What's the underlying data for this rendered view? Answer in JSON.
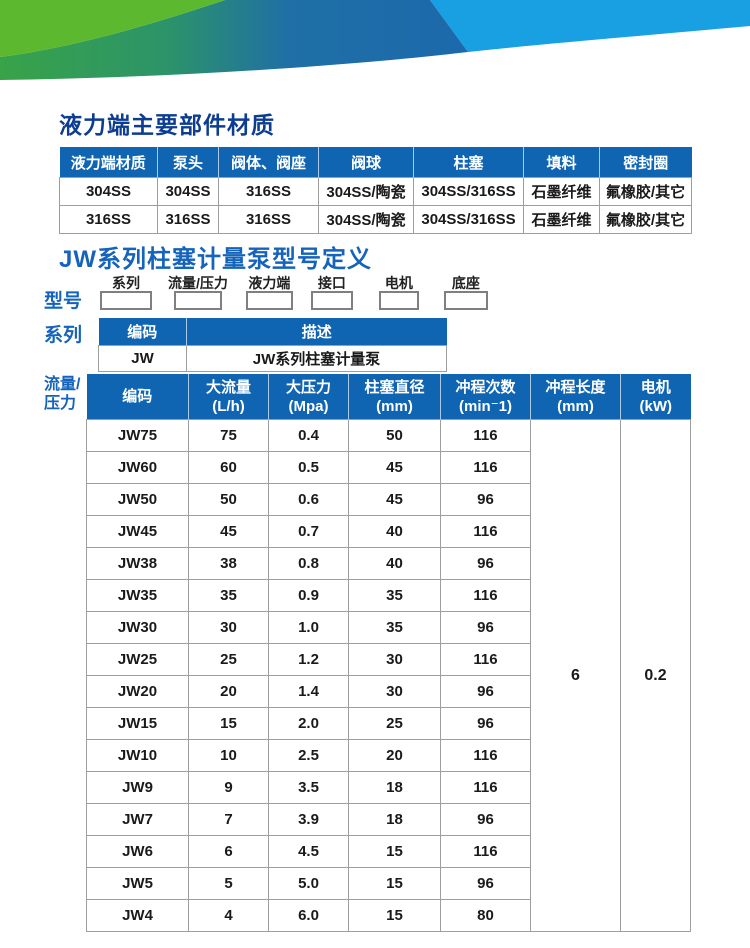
{
  "colors": {
    "header-blue": "#1065b2",
    "title-dark-blue": "#0d3d91",
    "title-bright-blue": "#1563bb",
    "label-blue": "#1563bb",
    "table-border": "#9e9e9e",
    "text-dark": "#1a1a1a",
    "wave-bright-green": "#5cb92f",
    "wave-dark-green": "#319e4d",
    "wave-steel-blue": "#1e6cab",
    "wave-light-blue": "#18a0e2"
  },
  "materials": {
    "title": "液力端主要部件材质",
    "headers": [
      "液力端材质",
      "泵头",
      "阀体、阀座",
      "阀球",
      "柱塞",
      "填料",
      "密封圈"
    ],
    "rows": [
      [
        "304SS",
        "304SS",
        "316SS",
        "304SS/陶瓷",
        "304SS/316SS",
        "石墨纤维",
        "氟橡胶/其它"
      ],
      [
        "316SS",
        "316SS",
        "316SS",
        "304SS/陶瓷",
        "304SS/316SS",
        "石墨纤维",
        "氟橡胶/其它"
      ]
    ]
  },
  "model_def": {
    "title": "JW系列柱塞计量泵型号定义",
    "row_label": "型号",
    "segments": [
      "系列",
      "流量/压力",
      "液力端",
      "接口",
      "电机",
      "底座"
    ]
  },
  "series": {
    "label": "系列",
    "headers": [
      "编码",
      "描述"
    ],
    "rows": [
      [
        "JW",
        "JW系列柱塞计量泵"
      ]
    ]
  },
  "flow_pressure": {
    "label": "流量/压力",
    "headers": [
      {
        "name": "编码",
        "unit": ""
      },
      {
        "name": "大流量",
        "unit": "(L/h)"
      },
      {
        "name": "大压力",
        "unit": "(Mpa)"
      },
      {
        "name": "柱塞直径",
        "unit": "(mm)"
      },
      {
        "name": "冲程次数",
        "unit": "(min⁻1)"
      },
      {
        "name": "冲程长度",
        "unit": "(mm)"
      },
      {
        "name": "电机",
        "unit": "(kW)"
      }
    ],
    "rows": [
      [
        "JW75",
        "75",
        "0.4",
        "50",
        "116"
      ],
      [
        "JW60",
        "60",
        "0.5",
        "45",
        "116"
      ],
      [
        "JW50",
        "50",
        "0.6",
        "45",
        "96"
      ],
      [
        "JW45",
        "45",
        "0.7",
        "40",
        "116"
      ],
      [
        "JW38",
        "38",
        "0.8",
        "40",
        "96"
      ],
      [
        "JW35",
        "35",
        "0.9",
        "35",
        "116"
      ],
      [
        "JW30",
        "30",
        "1.0",
        "35",
        "96"
      ],
      [
        "JW25",
        "25",
        "1.2",
        "30",
        "116"
      ],
      [
        "JW20",
        "20",
        "1.4",
        "30",
        "96"
      ],
      [
        "JW15",
        "15",
        "2.0",
        "25",
        "96"
      ],
      [
        "JW10",
        "10",
        "2.5",
        "20",
        "116"
      ],
      [
        "JW9",
        "9",
        "3.5",
        "18",
        "116"
      ],
      [
        "JW7",
        "7",
        "3.9",
        "18",
        "96"
      ],
      [
        "JW6",
        "6",
        "4.5",
        "15",
        "116"
      ],
      [
        "JW5",
        "5",
        "5.0",
        "15",
        "96"
      ],
      [
        "JW4",
        "4",
        "6.0",
        "15",
        "80"
      ]
    ],
    "merged": {
      "stroke_length_mm": "6",
      "motor_kw": "0.2"
    }
  }
}
